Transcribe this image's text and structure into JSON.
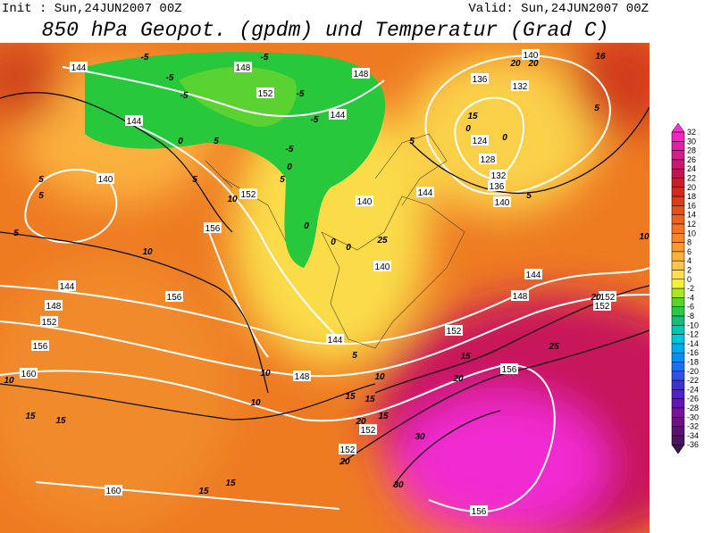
{
  "header": {
    "init": "Init : Sun,24JUN2007 00Z",
    "valid": "Valid: Sun,24JUN2007 00Z",
    "title": "850 hPa Geopot. (gpdm) und Temperatur (Grad C)"
  },
  "geopotential_labels": [
    144,
    148,
    148,
    152,
    144,
    144,
    140,
    152,
    156,
    140,
    144,
    140,
    144,
    148,
    152,
    156,
    156,
    160,
    144,
    148,
    152,
    148,
    144,
    152,
    152,
    156,
    152,
    152,
    160,
    156,
    136,
    140,
    132,
    124,
    128,
    132,
    136,
    140
  ],
  "temperature_labels": [
    -5,
    -5,
    -5,
    -5,
    -5,
    -5,
    -5,
    0,
    5,
    0,
    5,
    5,
    0,
    0,
    0,
    5,
    10,
    10,
    10,
    10,
    5,
    10,
    15,
    20,
    15,
    25,
    20,
    30,
    30,
    15,
    15,
    10,
    15,
    15,
    15,
    20,
    20,
    5,
    5,
    10,
    16,
    15,
    0,
    0,
    5,
    20,
    20,
    5,
    5,
    25,
    15
  ],
  "colorbar": {
    "labels": [
      32,
      30,
      28,
      26,
      24,
      22,
      20,
      18,
      16,
      14,
      12,
      10,
      8,
      6,
      4,
      2,
      0,
      -2,
      -4,
      -6,
      -8,
      -10,
      -12,
      -14,
      -16,
      -18,
      -20,
      -22,
      -24,
      -26,
      -28,
      -30,
      -32,
      -34,
      -36
    ],
    "colors": [
      "#f832d2",
      "#f028c0",
      "#e61ea8",
      "#d81c8c",
      "#c81870",
      "#c01450",
      "#c81e2c",
      "#d22a1e",
      "#dc3c16",
      "#e64e1a",
      "#ee6020",
      "#f27226",
      "#f6862a",
      "#f89a30",
      "#fab03a",
      "#fcc644",
      "#fee04e",
      "#f6f03c",
      "#a8e628",
      "#5ad232",
      "#2cc84a",
      "#18bc78",
      "#00c8b4",
      "#00c8dc",
      "#00aaf0",
      "#0a8cf0",
      "#1e6ef0",
      "#3250e6",
      "#3c32d2",
      "#5020c8",
      "#6414b4",
      "#781498",
      "#6e1482",
      "#5a1470",
      "#4a145e",
      "#3c1450"
    ]
  }
}
